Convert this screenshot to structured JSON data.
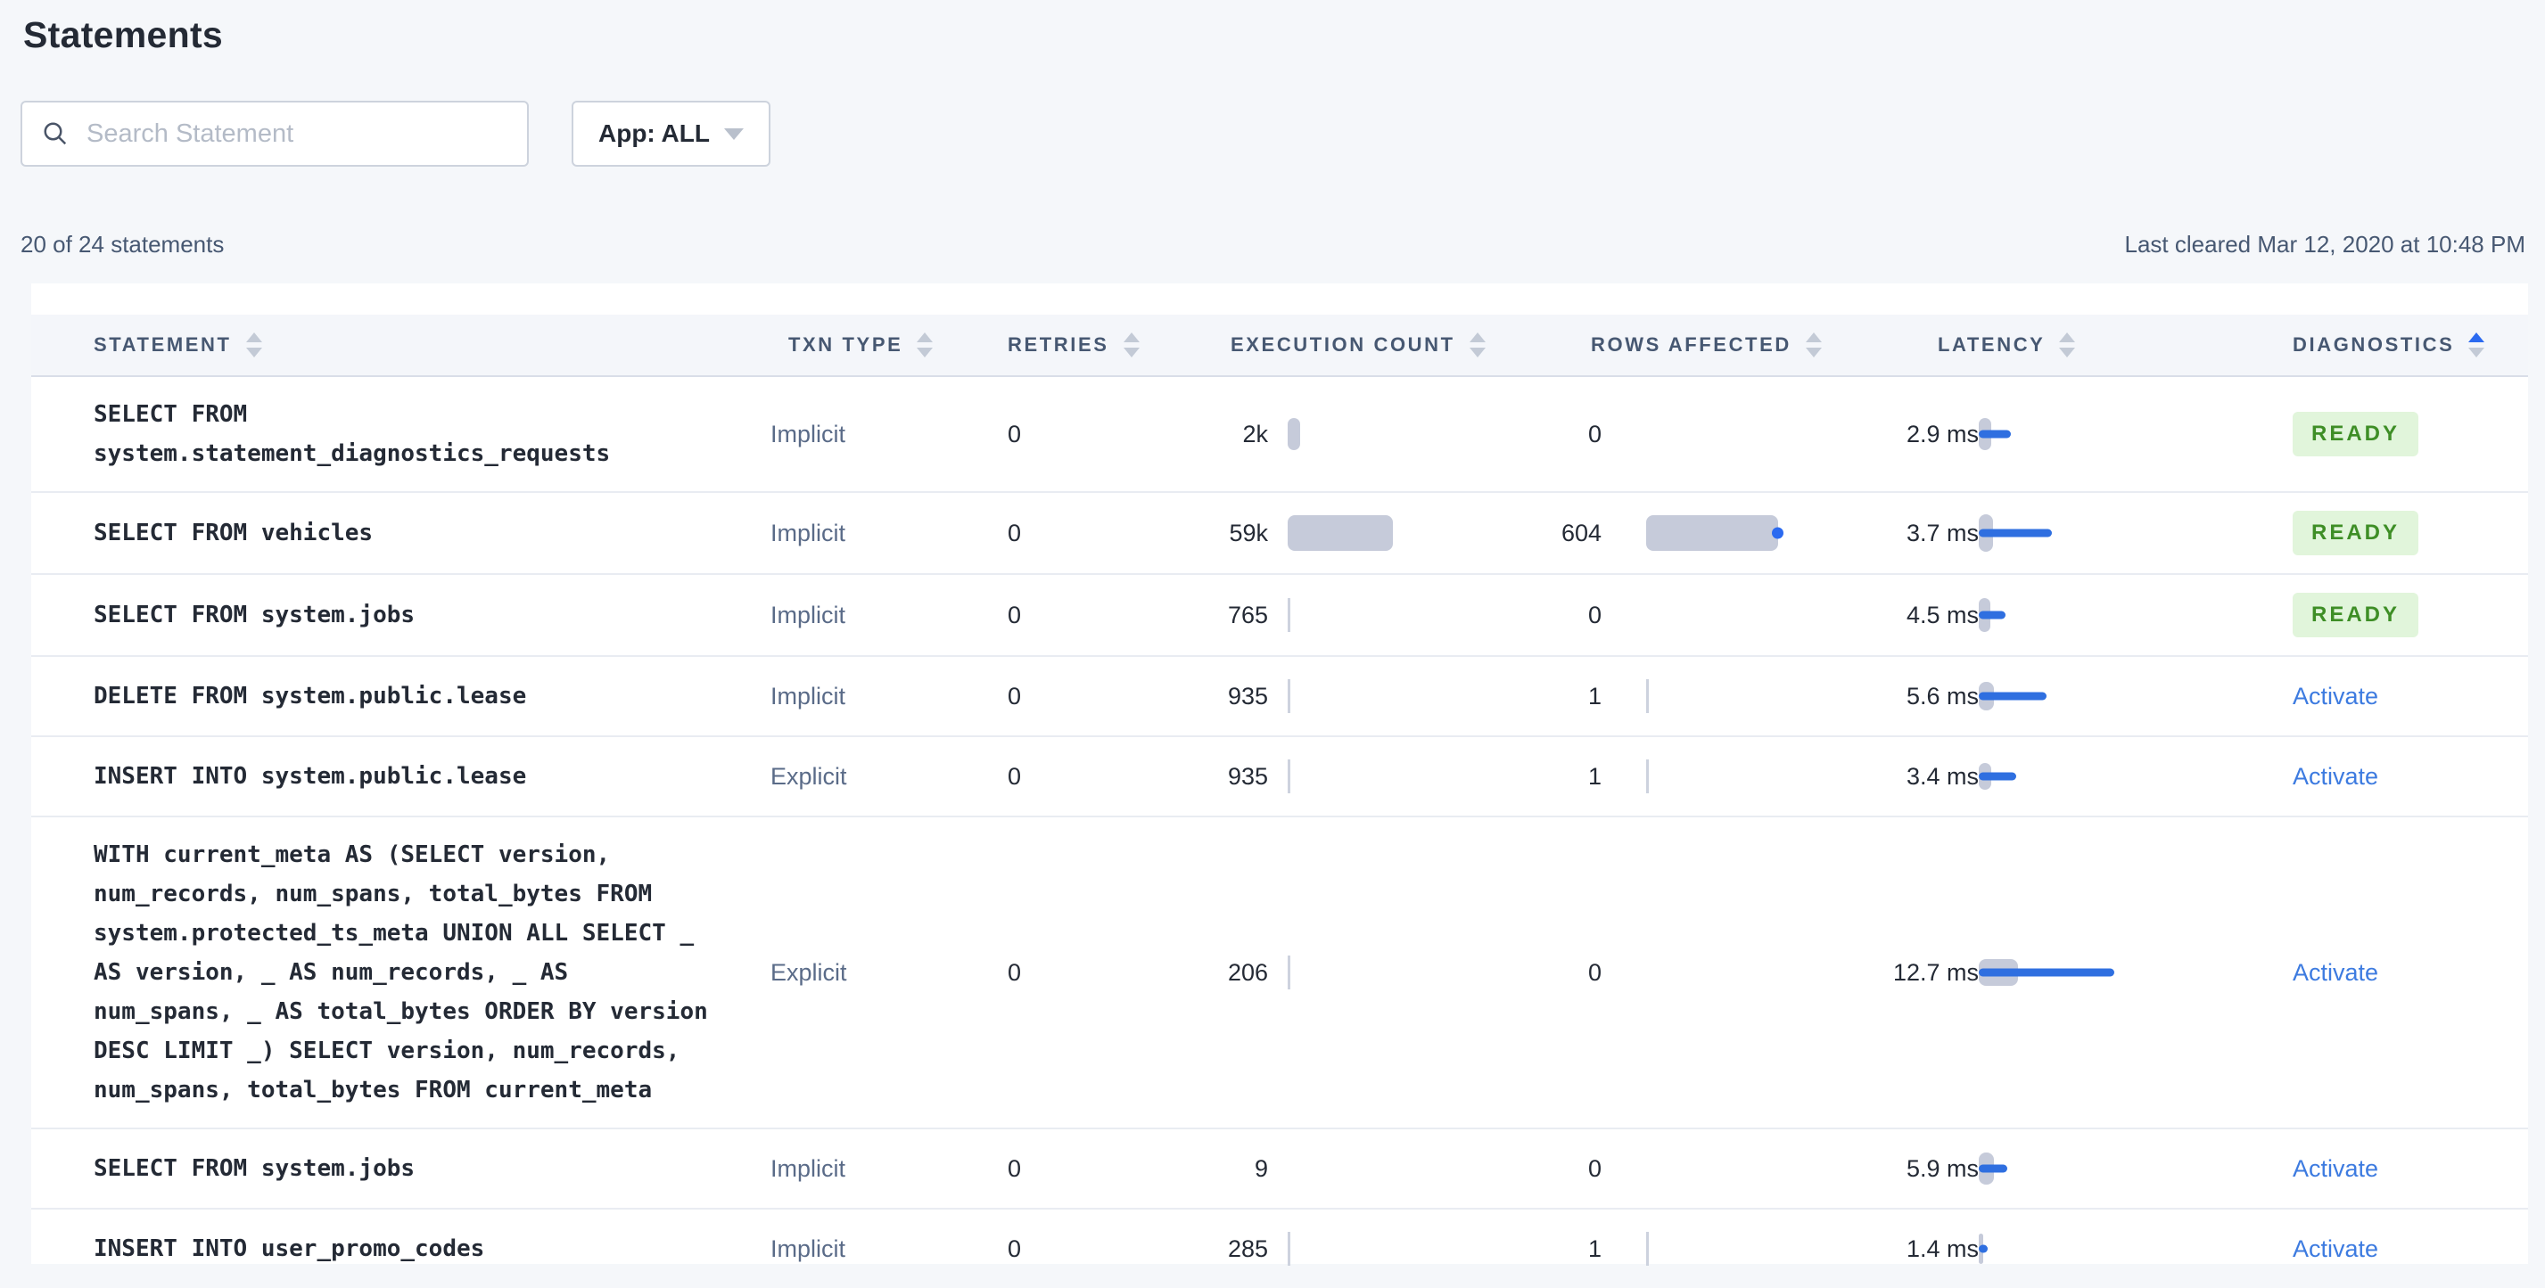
{
  "page": {
    "title": "Statements"
  },
  "toolbar": {
    "search_placeholder": "Search Statement",
    "app_filter_label": "App: ALL"
  },
  "summary": {
    "count_text": "20 of 24 statements",
    "last_cleared": "Last cleared Mar 12, 2020 at 10:48 PM"
  },
  "colors": {
    "accent_blue": "#2B6AF0",
    "bar_gray": "#C6CBDA",
    "badge_green_bg": "#E1F5DB",
    "badge_green_text": "#3E8E26",
    "link_blue": "#3D7BE0",
    "page_bg": "#F5F7FA"
  },
  "table": {
    "columns": [
      {
        "label": "STATEMENT",
        "sort": "none"
      },
      {
        "label": "TXN TYPE",
        "sort": "none"
      },
      {
        "label": "RETRIES",
        "sort": "none"
      },
      {
        "label": "EXECUTION COUNT",
        "sort": "none"
      },
      {
        "label": "ROWS AFFECTED",
        "sort": "none"
      },
      {
        "label": "LATENCY",
        "sort": "none"
      },
      {
        "label": "DIAGNOSTICS",
        "sort": "asc"
      }
    ],
    "rows": [
      {
        "statement": "SELECT FROM system.statement_diagnostics_requests",
        "txn_type": "Implicit",
        "retries": "0",
        "execution_count": "2k",
        "rows_affected": "0",
        "latency": "2.9 ms",
        "diagnostics": {
          "type": "badge",
          "label": "READY"
        },
        "viz": {
          "exec_bar": {
            "w": 14,
            "h": 36
          },
          "rows_bar": null,
          "latency_bar": {
            "gray_w": 14,
            "gray_h": 36,
            "blue_w": 36
          }
        }
      },
      {
        "statement": "SELECT FROM vehicles",
        "txn_type": "Implicit",
        "retries": "0",
        "execution_count": "59k",
        "rows_affected": "604",
        "latency": "3.7 ms",
        "diagnostics": {
          "type": "badge",
          "label": "READY"
        },
        "viz": {
          "exec_bar": {
            "w": 118,
            "h": 40
          },
          "rows_bar": {
            "w": 148,
            "h": 40,
            "dot": true
          },
          "latency_bar": {
            "gray_w": 16,
            "gray_h": 42,
            "blue_w": 82
          }
        }
      },
      {
        "statement": "SELECT FROM system.jobs",
        "txn_type": "Implicit",
        "retries": "0",
        "execution_count": "765",
        "rows_affected": "0",
        "latency": "4.5 ms",
        "diagnostics": {
          "type": "badge",
          "label": "READY"
        },
        "viz": {
          "exec_bar": {
            "w": 3,
            "h": 38,
            "thin": true
          },
          "rows_bar": null,
          "latency_bar": {
            "gray_w": 13,
            "gray_h": 38,
            "blue_w": 30
          }
        }
      },
      {
        "statement": "DELETE FROM system.public.lease",
        "txn_type": "Implicit",
        "retries": "0",
        "execution_count": "935",
        "rows_affected": "1",
        "latency": "5.6 ms",
        "diagnostics": {
          "type": "link",
          "label": "Activate"
        },
        "viz": {
          "exec_bar": {
            "w": 3,
            "h": 38,
            "thin": true
          },
          "rows_bar": {
            "w": 3,
            "h": 38,
            "thin": true
          },
          "latency_bar": {
            "gray_w": 17,
            "gray_h": 32,
            "blue_w": 76
          }
        }
      },
      {
        "statement": "INSERT INTO system.public.lease",
        "txn_type": "Explicit",
        "retries": "0",
        "execution_count": "935",
        "rows_affected": "1",
        "latency": "3.4 ms",
        "diagnostics": {
          "type": "link",
          "label": "Activate"
        },
        "viz": {
          "exec_bar": {
            "w": 3,
            "h": 38,
            "thin": true
          },
          "rows_bar": {
            "w": 3,
            "h": 38,
            "thin": true
          },
          "latency_bar": {
            "gray_w": 14,
            "gray_h": 30,
            "blue_w": 42
          }
        }
      },
      {
        "statement": "WITH current_meta AS (SELECT version, num_records, num_spans, total_bytes FROM system.protected_ts_meta UNION ALL SELECT _ AS version, _ AS num_records, _ AS num_spans, _ AS total_bytes ORDER BY version DESC LIMIT _) SELECT version, num_records, num_spans, total_bytes FROM current_meta",
        "txn_type": "Explicit",
        "retries": "0",
        "execution_count": "206",
        "rows_affected": "0",
        "latency": "12.7 ms",
        "diagnostics": {
          "type": "link",
          "label": "Activate"
        },
        "viz": {
          "exec_bar": {
            "w": 3,
            "h": 38,
            "thin": true
          },
          "rows_bar": null,
          "latency_bar": {
            "gray_w": 44,
            "gray_h": 30,
            "blue_w": 152
          }
        }
      },
      {
        "statement": "SELECT FROM system.jobs",
        "txn_type": "Implicit",
        "retries": "0",
        "execution_count": "9",
        "rows_affected": "0",
        "latency": "5.9 ms",
        "diagnostics": {
          "type": "link",
          "label": "Activate"
        },
        "viz": {
          "exec_bar": null,
          "rows_bar": null,
          "latency_bar": {
            "gray_w": 17,
            "gray_h": 36,
            "blue_w": 32
          }
        }
      },
      {
        "statement": "INSERT INTO user_promo_codes",
        "txn_type": "Implicit",
        "retries": "0",
        "execution_count": "285",
        "rows_affected": "1",
        "latency": "1.4 ms",
        "diagnostics": {
          "type": "link",
          "label": "Activate"
        },
        "viz": {
          "exec_bar": {
            "w": 3,
            "h": 38,
            "thin": true
          },
          "rows_bar": {
            "w": 3,
            "h": 38,
            "thin": true
          },
          "latency_bar": {
            "gray_w": 5,
            "gray_h": 34,
            "blue_w": 10
          }
        }
      }
    ]
  }
}
